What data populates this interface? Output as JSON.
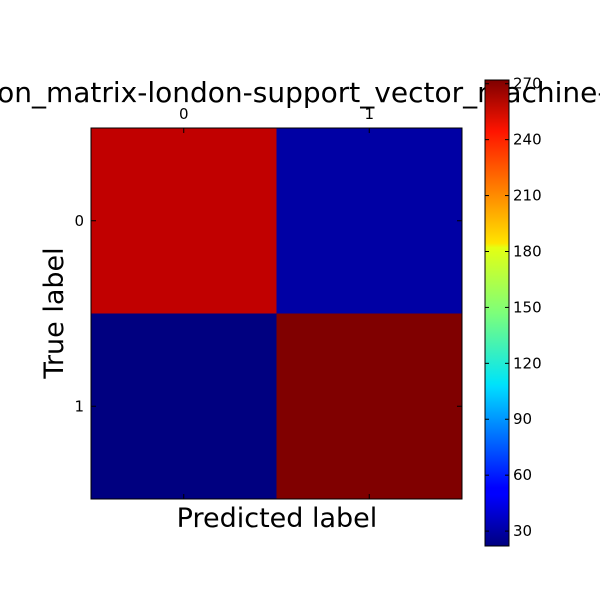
{
  "chart_data": {
    "type": "heatmap",
    "title": "confusion_matrix-london-support_vector_machine-sim",
    "xlabel": "Predicted label",
    "ylabel": "True label",
    "x_categories": [
      "0",
      "1"
    ],
    "y_categories": [
      "0",
      "1"
    ],
    "values": [
      [
        256,
        31
      ],
      [
        22,
        272
      ]
    ],
    "colormap": "jet",
    "color_range": [
      22,
      272
    ],
    "colorbar_ticks": [
      30,
      60,
      90,
      120,
      150,
      180,
      210,
      240,
      270
    ],
    "grid": false
  }
}
